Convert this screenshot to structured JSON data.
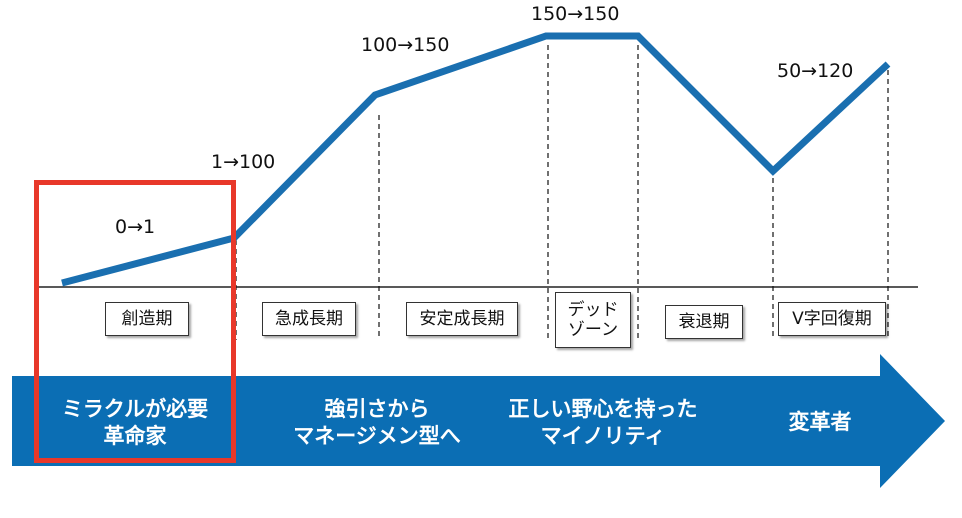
{
  "colors": {
    "line": "#1a6fb0",
    "arrow": "#0b6eb4",
    "highlight": "#e8382a"
  },
  "ranges": [
    {
      "id": "creation",
      "text": "0→1"
    },
    {
      "id": "rapid-growth",
      "text": "1→100"
    },
    {
      "id": "stable-growth",
      "text": "100→150"
    },
    {
      "id": "dead-zone",
      "text": "150→150"
    },
    {
      "id": "recovery",
      "text": "50→120"
    }
  ],
  "phases": [
    {
      "id": "creation",
      "label": "創造期"
    },
    {
      "id": "rapid-growth",
      "label": "急成長期"
    },
    {
      "id": "stable-growth",
      "label": "安定成長期"
    },
    {
      "id": "dead-zone",
      "label": "デッド\nゾーン"
    },
    {
      "id": "decline",
      "label": "衰退期"
    },
    {
      "id": "v-recovery",
      "label": "V字回復期"
    }
  ],
  "roles": [
    {
      "id": "miracle",
      "text": "ミラクルが必要\n革命家"
    },
    {
      "id": "strong-pull",
      "text": "強引さから\nマネージメン型へ"
    },
    {
      "id": "ambition",
      "text": "正しい野心を持った\nマイノリティ"
    },
    {
      "id": "reformer",
      "text": "変革者"
    }
  ]
}
